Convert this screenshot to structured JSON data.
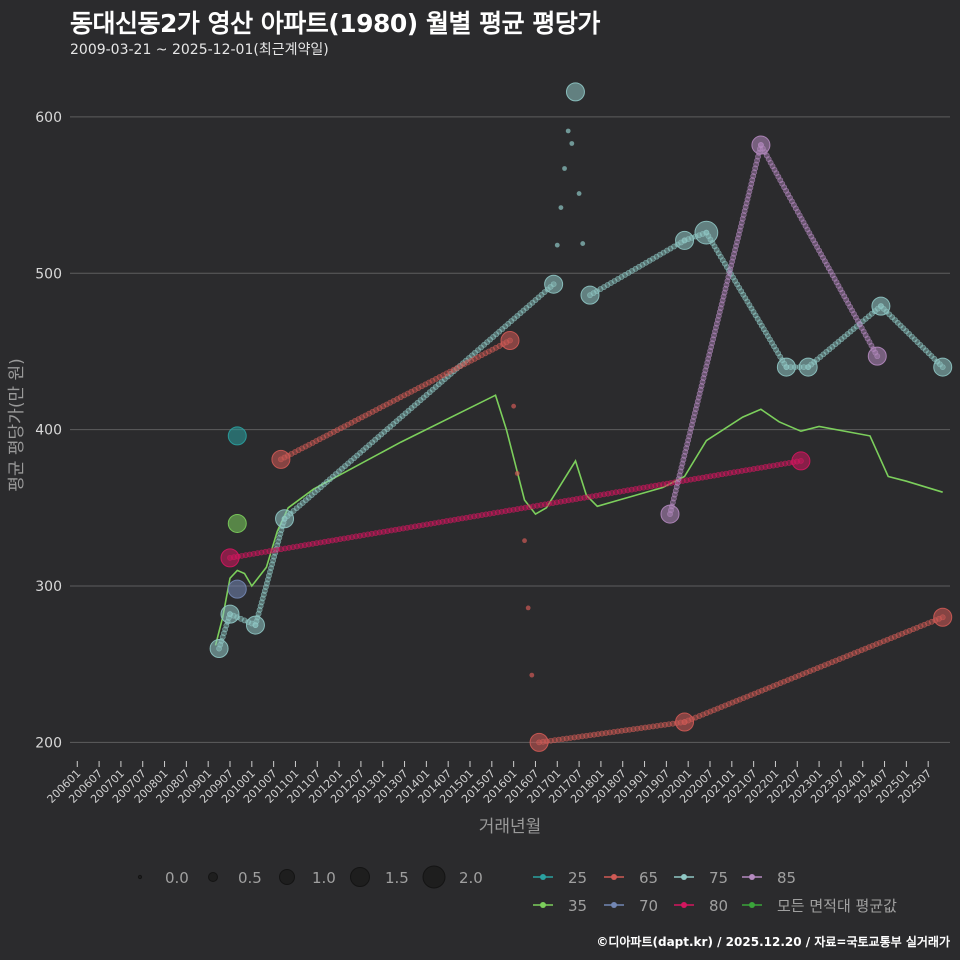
{
  "header": {
    "title": "동대신동2가 영산 아파트(1980) 월별 평균 평당가",
    "subtitle": "2009-03-21 ~ 2025-12-01(최근계약일)"
  },
  "footer": {
    "credit": "©디아파트(dapt.kr) / 2025.12.20 / 자료=국토교통부 실거래가"
  },
  "colors": {
    "background": "#2b2b2d",
    "grid": "#5e5e5e",
    "s25": "#2aa1a0",
    "s35": "#7ccf5c",
    "s65": "#cf5a55",
    "s70": "#7387b4",
    "s75": "#8fc7c4",
    "s80": "#d4165f",
    "s85": "#b58ac0",
    "avg": "#3aa53a"
  },
  "chart_data": {
    "type": "scatter",
    "title": "동대신동2가 영산 아파트(1980) 월별 평균 평당가",
    "xlabel": "거래년월",
    "ylabel": "평균 평당가(만 원)",
    "ylim": [
      190,
      630
    ],
    "xlim": [
      "2005-11",
      "2026-01"
    ],
    "yticks": [
      200,
      300,
      400,
      500,
      600
    ],
    "xticks": [
      "200601",
      "200607",
      "200701",
      "200707",
      "200801",
      "200807",
      "200901",
      "200907",
      "201001",
      "201007",
      "201101",
      "201107",
      "201201",
      "201207",
      "201301",
      "201307",
      "201401",
      "201407",
      "201501",
      "201507",
      "201601",
      "201607",
      "201701",
      "201707",
      "201801",
      "201807",
      "201901",
      "201907",
      "202001",
      "202007",
      "202101",
      "202107",
      "202201",
      "202207",
      "202301",
      "202307",
      "202401",
      "202407",
      "202501",
      "202507"
    ],
    "size_legend": {
      "title": "",
      "values": [
        "0.0",
        "0.5",
        "1.0",
        "1.5",
        "2.0"
      ]
    },
    "color_legend": [
      {
        "key": "s25",
        "label": "25"
      },
      {
        "key": "s65",
        "label": "65"
      },
      {
        "key": "s75",
        "label": "75"
      },
      {
        "key": "s85",
        "label": "85"
      },
      {
        "key": "s35",
        "label": "35"
      },
      {
        "key": "s70",
        "label": "70"
      },
      {
        "key": "s80",
        "label": "80"
      },
      {
        "key": "avg",
        "label": "모든 면적대 평균값"
      }
    ],
    "series": [
      {
        "name": "25",
        "key": "s25",
        "points": [
          {
            "t": "2009-09",
            "v": 396,
            "s": 1.0
          }
        ],
        "dots": []
      },
      {
        "name": "35",
        "key": "s35",
        "points": [
          {
            "t": "2009-09",
            "v": 340,
            "s": 1.0
          }
        ],
        "dots": []
      },
      {
        "name": "65",
        "key": "s65",
        "points": [
          {
            "t": "2010-09",
            "v": 381,
            "s": 1.0
          },
          {
            "t": "2015-12",
            "v": 457,
            "s": 1.0
          },
          {
            "t": "2016-08",
            "v": 200,
            "s": 1.0
          },
          {
            "t": "2019-12",
            "v": 213,
            "s": 1.0
          },
          {
            "t": "2025-11",
            "v": 280,
            "s": 1.0
          }
        ],
        "dots": [
          {
            "t": "2016-01",
            "v": 415
          },
          {
            "t": "2016-02",
            "v": 372
          },
          {
            "t": "2016-04",
            "v": 329
          },
          {
            "t": "2016-05",
            "v": 286
          },
          {
            "t": "2016-06",
            "v": 243
          }
        ]
      },
      {
        "name": "70",
        "key": "s70",
        "points": [
          {
            "t": "2009-09",
            "v": 298,
            "s": 1.0
          }
        ],
        "dots": []
      },
      {
        "name": "75",
        "key": "s75",
        "points": [
          {
            "t": "2009-04",
            "v": 260,
            "s": 1.0
          },
          {
            "t": "2009-07",
            "v": 282,
            "s": 1.0
          },
          {
            "t": "2010-02",
            "v": 275,
            "s": 1.0
          },
          {
            "t": "2010-10",
            "v": 343,
            "s": 1.0
          },
          {
            "t": "2016-12",
            "v": 493,
            "s": 1.0
          },
          {
            "t": "2017-06",
            "v": 616,
            "s": 1.0
          },
          {
            "t": "2017-10",
            "v": 486,
            "s": 1.0
          },
          {
            "t": "2019-12",
            "v": 521,
            "s": 1.0
          },
          {
            "t": "2020-06",
            "v": 526,
            "s": 1.6
          },
          {
            "t": "2022-04",
            "v": 440,
            "s": 1.0
          },
          {
            "t": "2022-10",
            "v": 440,
            "s": 1.0
          },
          {
            "t": "2024-06",
            "v": 479,
            "s": 1.0
          },
          {
            "t": "2025-11",
            "v": 440,
            "s": 1.0
          }
        ],
        "dots": [
          {
            "t": "2017-01",
            "v": 518
          },
          {
            "t": "2017-02",
            "v": 542
          },
          {
            "t": "2017-03",
            "v": 567
          },
          {
            "t": "2017-04",
            "v": 591
          },
          {
            "t": "2017-05",
            "v": 583
          },
          {
            "t": "2017-07",
            "v": 551
          },
          {
            "t": "2017-08",
            "v": 519
          }
        ]
      },
      {
        "name": "80",
        "key": "s80",
        "points": [
          {
            "t": "2009-07",
            "v": 318,
            "s": 1.0
          },
          {
            "t": "2022-08",
            "v": 380,
            "s": 1.0
          }
        ],
        "dots": []
      },
      {
        "name": "85",
        "key": "s85",
        "points": [
          {
            "t": "2019-08",
            "v": 346,
            "s": 1.0
          },
          {
            "t": "2021-09",
            "v": 582,
            "s": 1.0
          },
          {
            "t": "2024-05",
            "v": 447,
            "s": 1.0
          }
        ],
        "dots": []
      }
    ],
    "paths": [
      {
        "key": "s75",
        "from": 0,
        "to": 1
      },
      {
        "key": "s75",
        "from": 1,
        "to": 2
      },
      {
        "key": "s75",
        "from": 2,
        "to": 3
      },
      {
        "key": "s75",
        "from": 3,
        "to": 4
      },
      {
        "key": "s75",
        "from": 6,
        "to": 7
      },
      {
        "key": "s75",
        "from": 7,
        "to": 8
      },
      {
        "key": "s75",
        "from": 8,
        "to": 9
      },
      {
        "key": "s75",
        "from": 9,
        "to": 10
      },
      {
        "key": "s75",
        "from": 10,
        "to": 11
      },
      {
        "key": "s75",
        "from": 11,
        "to": 12
      },
      {
        "key": "s65",
        "from": 0,
        "to": 1
      },
      {
        "key": "s65",
        "from": 2,
        "to": 3
      },
      {
        "key": "s65",
        "from": 3,
        "to": 4
      },
      {
        "key": "s80",
        "from": 0,
        "to": 1
      },
      {
        "key": "s85",
        "from": 0,
        "to": 1
      },
      {
        "key": "s85",
        "from": 1,
        "to": 2
      }
    ],
    "average_line": {
      "name": "모든 면적대 평균값",
      "points": [
        {
          "t": "2009-03",
          "v": 262
        },
        {
          "t": "2009-05",
          "v": 280
        },
        {
          "t": "2009-07",
          "v": 305
        },
        {
          "t": "2009-09",
          "v": 310
        },
        {
          "t": "2009-11",
          "v": 308
        },
        {
          "t": "2010-01",
          "v": 300
        },
        {
          "t": "2010-05",
          "v": 312
        },
        {
          "t": "2010-08",
          "v": 335
        },
        {
          "t": "2010-11",
          "v": 350
        },
        {
          "t": "2011-06",
          "v": 362
        },
        {
          "t": "2013-06",
          "v": 392
        },
        {
          "t": "2015-08",
          "v": 422
        },
        {
          "t": "2015-11",
          "v": 400
        },
        {
          "t": "2016-04",
          "v": 355
        },
        {
          "t": "2016-07",
          "v": 346
        },
        {
          "t": "2016-10",
          "v": 350
        },
        {
          "t": "2017-02",
          "v": 365
        },
        {
          "t": "2017-06",
          "v": 380
        },
        {
          "t": "2017-09",
          "v": 358
        },
        {
          "t": "2017-12",
          "v": 351
        },
        {
          "t": "2018-06",
          "v": 355
        },
        {
          "t": "2019-06",
          "v": 363
        },
        {
          "t": "2019-12",
          "v": 370
        },
        {
          "t": "2020-06",
          "v": 393
        },
        {
          "t": "2021-04",
          "v": 408
        },
        {
          "t": "2021-09",
          "v": 413
        },
        {
          "t": "2022-02",
          "v": 405
        },
        {
          "t": "2022-08",
          "v": 399
        },
        {
          "t": "2023-01",
          "v": 402
        },
        {
          "t": "2024-03",
          "v": 396
        },
        {
          "t": "2024-08",
          "v": 370
        },
        {
          "t": "2025-01",
          "v": 367
        },
        {
          "t": "2025-11",
          "v": 360
        }
      ]
    }
  }
}
